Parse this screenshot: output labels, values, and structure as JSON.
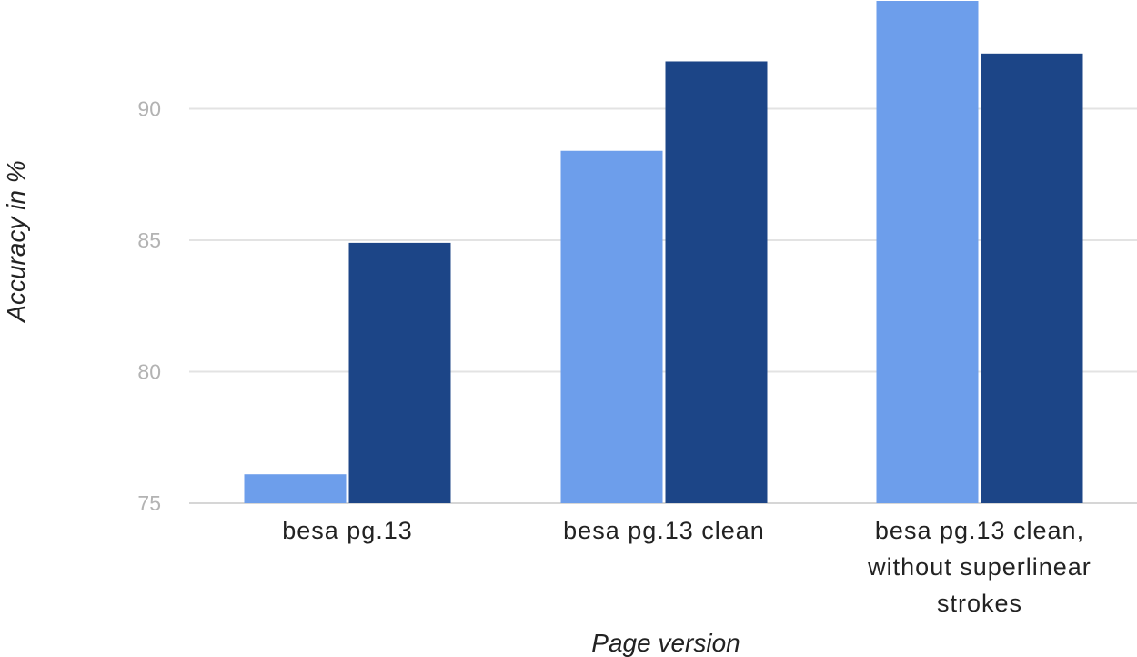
{
  "chart_data": {
    "type": "bar",
    "title": "",
    "xlabel": "Page version",
    "ylabel": "Accuracy in %",
    "ylim": [
      75,
      94.1
    ],
    "yticks": [
      "75",
      "80",
      "85",
      "90"
    ],
    "categories": [
      [
        "besa pg.13"
      ],
      [
        "besa pg.13 clean"
      ],
      [
        "besa pg.13 clean,",
        "without superlinear",
        "strokes"
      ]
    ],
    "series": [
      {
        "values": [
          76.1,
          88.4,
          94.1
        ]
      },
      {
        "values": [
          84.9,
          91.8,
          92.1
        ]
      }
    ],
    "colors": [
      "#6d9eeb",
      "#1c4587"
    ],
    "grid": true,
    "legend": "none"
  }
}
